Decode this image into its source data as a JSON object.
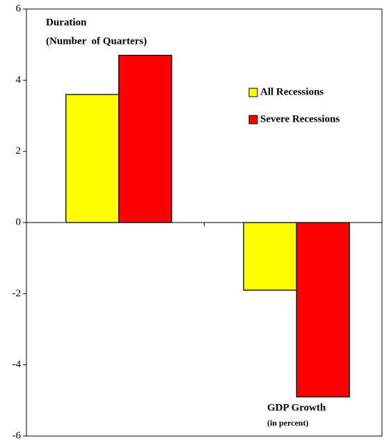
{
  "chart_data": {
    "type": "bar",
    "categories": [
      null,
      null
    ],
    "series": [
      {
        "name": "All Recessions",
        "color": "#ffff00",
        "values": [
          3.6,
          -1.9
        ]
      },
      {
        "name": "Severe Recessions",
        "color": "#ff0000",
        "values": [
          4.7,
          -4.9
        ]
      }
    ],
    "annotations": [
      "Duration",
      "(Number  of Quarters)",
      "GDP Growth",
      "(in percent)"
    ],
    "ylim": [
      -6,
      6
    ],
    "yticks": [
      -6,
      -4,
      -2,
      0,
      2,
      4,
      6
    ],
    "grid": false
  }
}
